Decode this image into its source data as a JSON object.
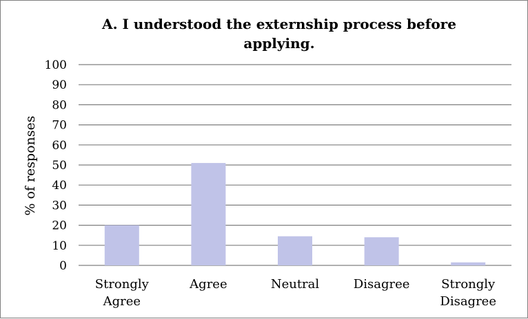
{
  "chart_data": {
    "type": "bar",
    "title_lines": [
      "A. I understood the externship process before",
      "applying."
    ],
    "categories": [
      [
        "Strongly",
        "Agree"
      ],
      [
        "Agree"
      ],
      [
        "Neutral"
      ],
      [
        "Disagree"
      ],
      [
        "Strongly",
        "Disagree"
      ]
    ],
    "values": [
      20,
      51,
      14.5,
      14,
      1.5
    ],
    "ylabel": "% of responses",
    "ylim": [
      0,
      100
    ],
    "yticks": [
      "0",
      "10",
      "20",
      "30",
      "40",
      "50",
      "60",
      "70",
      "80",
      "90",
      "100"
    ],
    "grid": true,
    "bar_color": "#c0c3e8",
    "grid_color": "#7f7f7f"
  }
}
